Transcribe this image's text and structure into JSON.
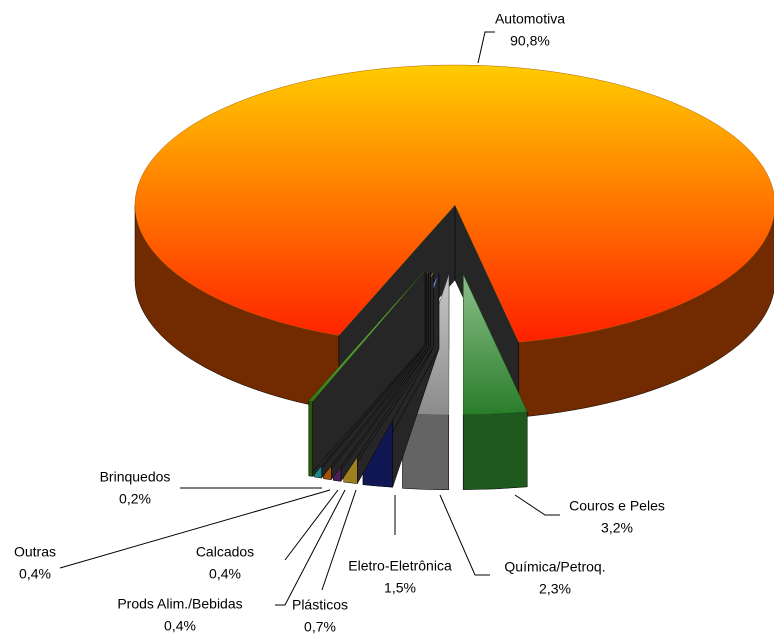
{
  "chart_data": {
    "type": "pie",
    "three_d": true,
    "categories": [
      "Couros e Peles",
      "Química/Petroq.",
      "Eletro-Eletrônica",
      "Plásticos",
      "Prods Alim./Bebidas",
      "Calcados",
      "Outras",
      "Brinquedos",
      "Automotiva"
    ],
    "values": [
      3.2,
      2.3,
      1.5,
      0.7,
      0.4,
      0.4,
      0.4,
      0.2,
      90.8
    ],
    "value_labels": [
      "3,2%",
      "2,3%",
      "1,5%",
      "0,7%",
      "0,4%",
      "0,4%",
      "0,4%",
      "0,2%",
      "90,8%"
    ],
    "colors": [
      "#2e8b2e",
      "#9a9a9a",
      "#1a237e",
      "#f4c430",
      "#7b2d8b",
      "#ff7f00",
      "#33cccc",
      "#3a8a10",
      "#ff8c00"
    ]
  }
}
